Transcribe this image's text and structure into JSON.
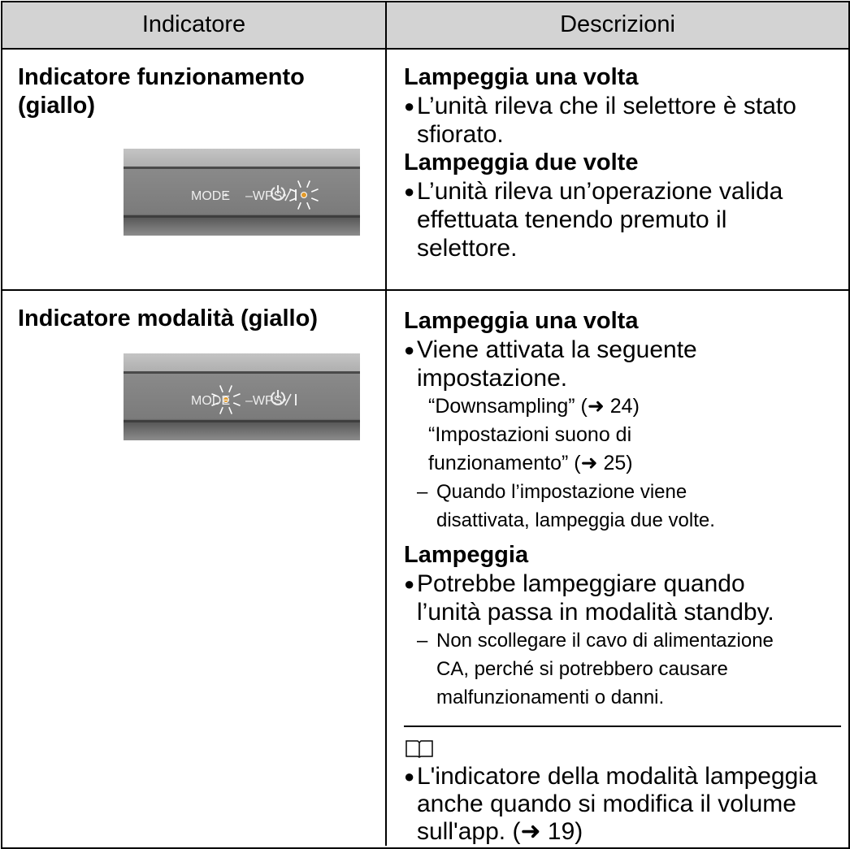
{
  "table": {
    "header": [
      "Indicatore",
      "Descrizioni"
    ],
    "rows": [
      {
        "indicator": [
          "Indicatore funzionamento",
          "(giallo)"
        ],
        "panel": {
          "mode": "MODE",
          "wps": "–WPS"
        },
        "blocks": [
          {
            "heading": "Lampeggia una volta",
            "items": [
              {
                "kind": "bullet",
                "lines": [
                  "L’unità rileva che il selettore è stato",
                  "sfiorato."
                ]
              }
            ]
          },
          {
            "heading": "Lampeggia due volte",
            "items": [
              {
                "kind": "bullet",
                "lines": [
                  "L’unità rileva un’operazione valida",
                  "effettuata tenendo premuto il",
                  "selettore."
                ]
              }
            ]
          }
        ]
      },
      {
        "indicator": [
          "Indicatore modalità (giallo)"
        ],
        "panel": {
          "mode": "MODE",
          "wps": "–WPS"
        },
        "blocks": [
          {
            "heading": "Lampeggia una volta",
            "items": [
              {
                "kind": "bullet",
                "lines": [
                  "Viene attivata la seguente",
                  "impostazione."
                ]
              },
              {
                "kind": "sub",
                "lines": [
                  "“Downsampling” (➜ 24)",
                  "“Impostazioni suono di",
                  "funzionamento” (➜ 25)"
                ]
              },
              {
                "kind": "dash",
                "lines": [
                  "Quando l’impostazione viene",
                  "disattivata, lampeggia due volte."
                ]
              }
            ]
          },
          {
            "heading": "Lampeggia",
            "items": [
              {
                "kind": "bullet",
                "lines": [
                  "Potrebbe lampeggiare quando",
                  "l’unità passa in modalità standby."
                ]
              },
              {
                "kind": "dash",
                "lines": [
                  "Non scollegare il cavo di alimentazione",
                  "CA, perché si potrebbero causare",
                  "malfunzionamenti o danni."
                ]
              }
            ]
          }
        ],
        "note": {
          "lines": [
            "L'indicatore della modalità lampeggia",
            "anche quando si modifica il volume",
            "sull'app. (➜ 19)"
          ]
        }
      }
    ]
  }
}
